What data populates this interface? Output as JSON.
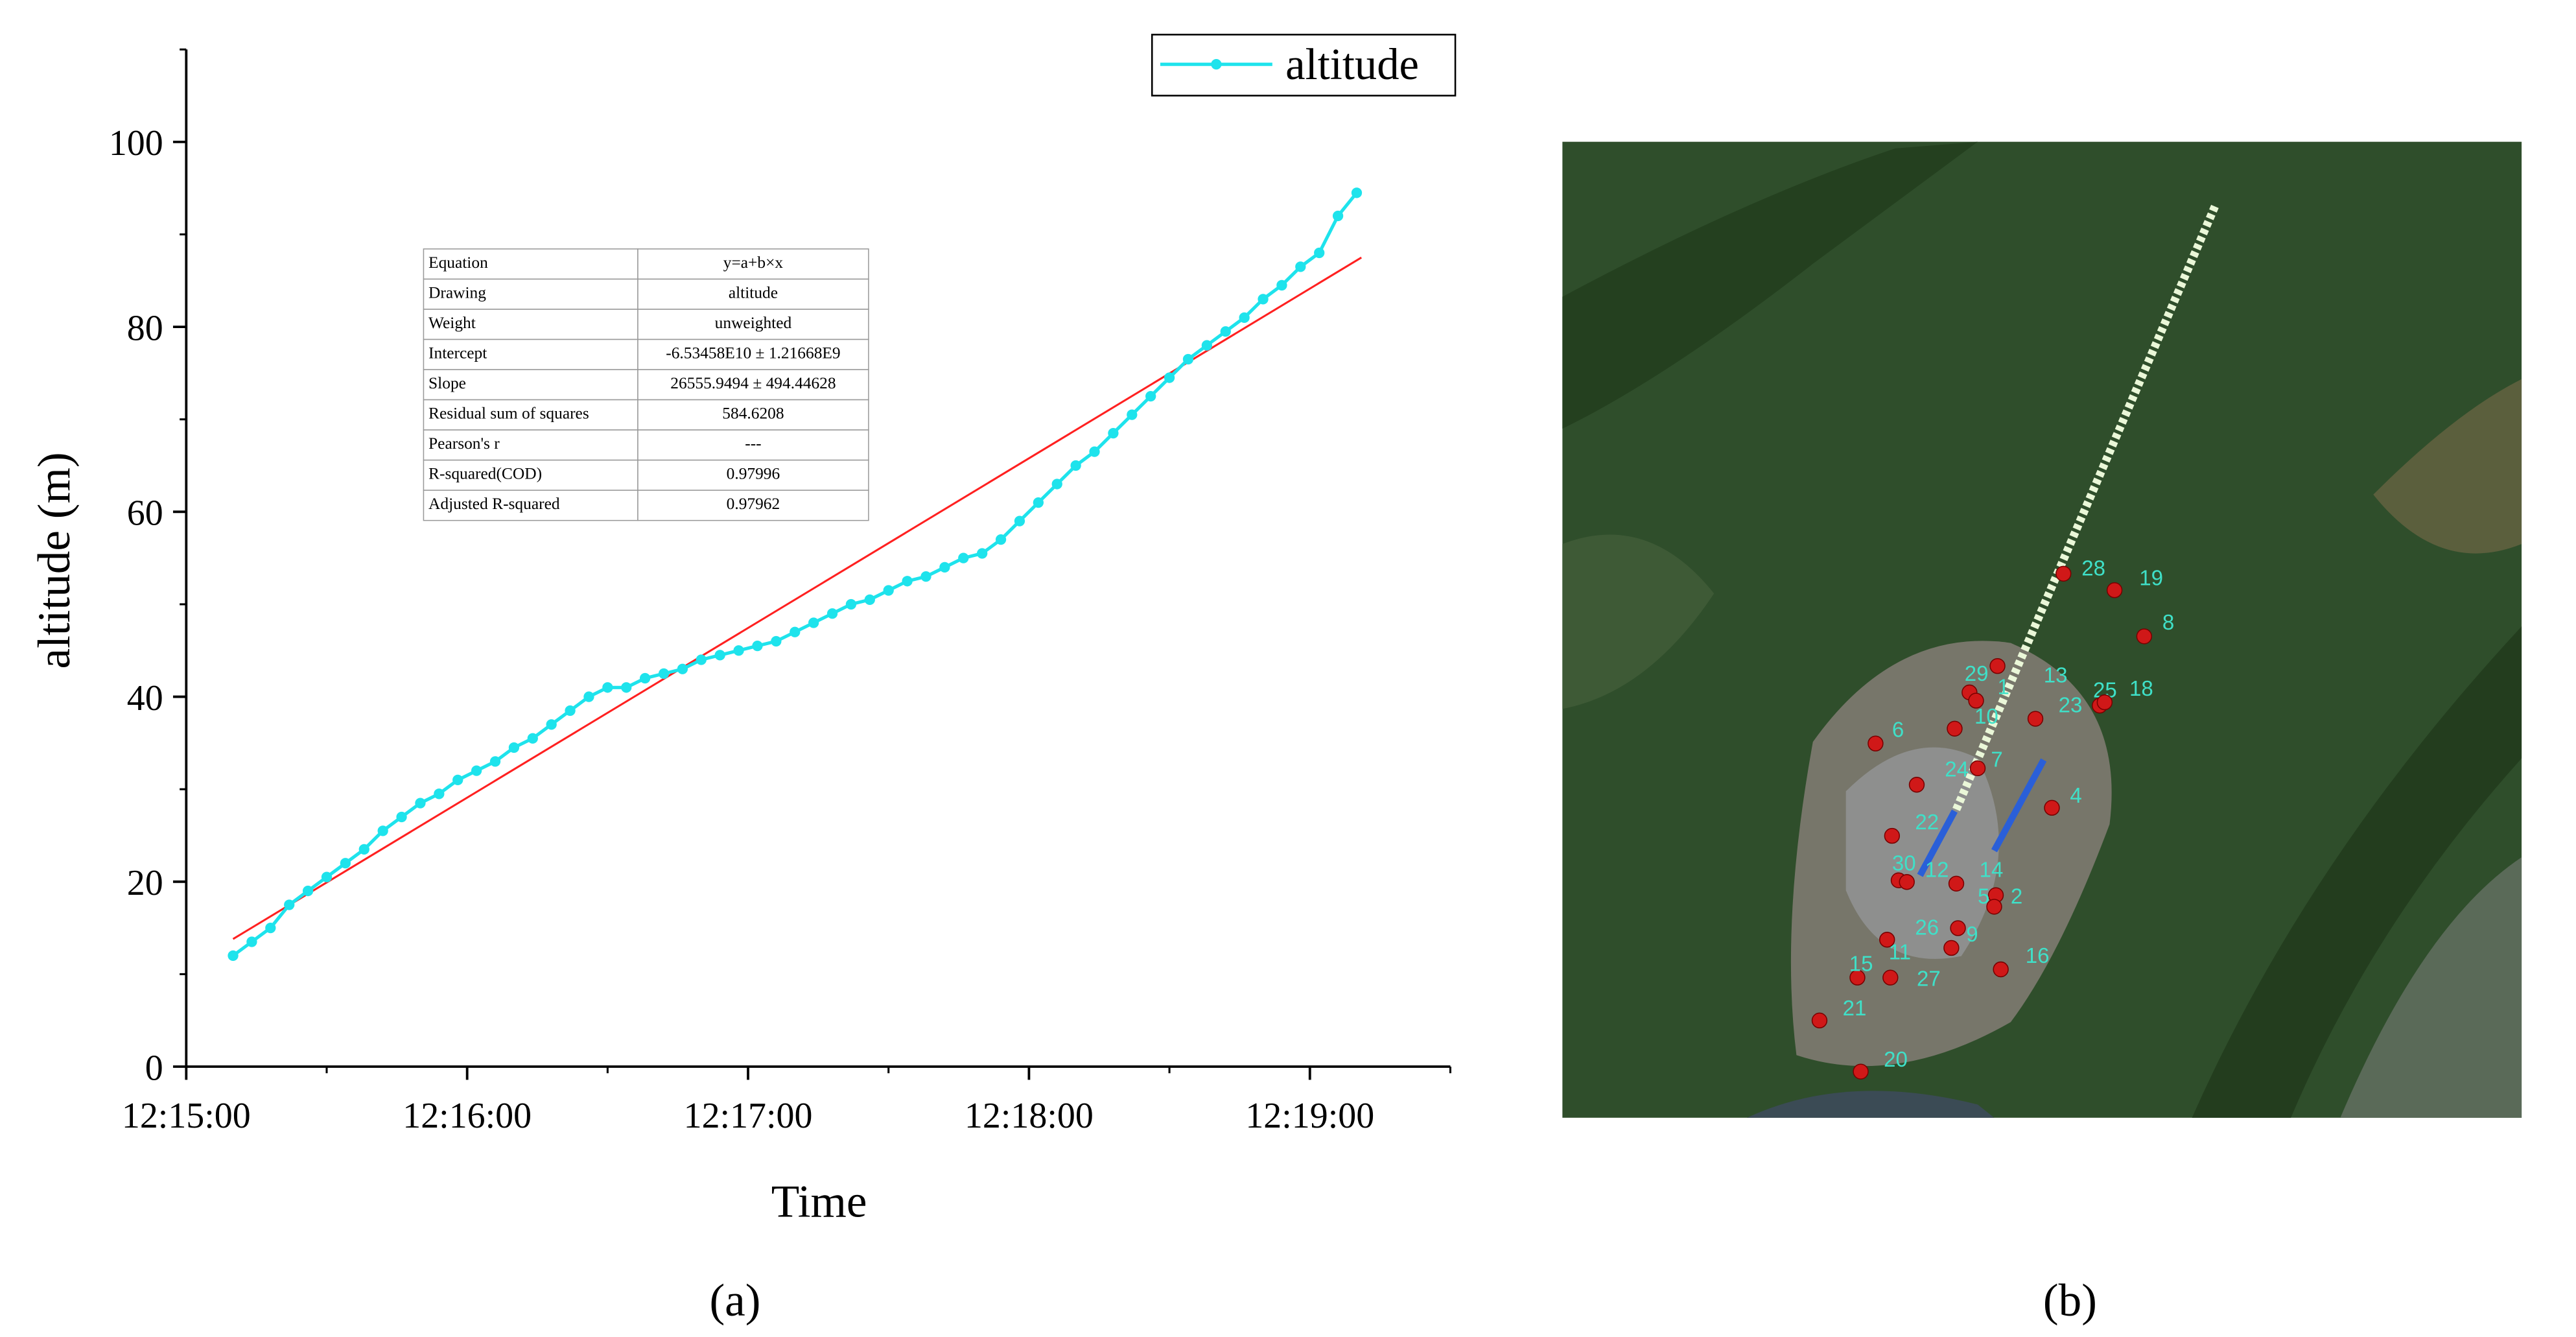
{
  "chart_data": {
    "type": "line",
    "xlabel": "Time",
    "ylabel": "altitude (m)",
    "xlim": [
      "12:15:00",
      "12:19:30"
    ],
    "xticks": [
      "12:15:00",
      "12:16:00",
      "12:17:00",
      "12:18:00",
      "12:19:00"
    ],
    "xminorticks": [
      "12:15:30",
      "12:16:30",
      "12:17:30",
      "12:18:30",
      "12:19:30"
    ],
    "ylim": [
      0,
      110
    ],
    "yticks": [
      0,
      20,
      40,
      60,
      80,
      100
    ],
    "yminorticks": [
      10,
      30,
      50,
      70,
      90,
      110
    ],
    "legend": "top-right",
    "series": [
      {
        "name": "altitude",
        "color": "#1ee3ec",
        "x": [
          "12:15:10",
          "12:15:14",
          "12:15:18",
          "12:15:22",
          "12:15:26",
          "12:15:30",
          "12:15:34",
          "12:15:38",
          "12:15:42",
          "12:15:46",
          "12:15:50",
          "12:15:54",
          "12:15:58",
          "12:16:02",
          "12:16:06",
          "12:16:10",
          "12:16:14",
          "12:16:18",
          "12:16:22",
          "12:16:26",
          "12:16:30",
          "12:16:34",
          "12:16:38",
          "12:16:42",
          "12:16:46",
          "12:16:50",
          "12:16:54",
          "12:16:58",
          "12:17:02",
          "12:17:06",
          "12:17:10",
          "12:17:14",
          "12:17:18",
          "12:17:22",
          "12:17:26",
          "12:17:30",
          "12:17:34",
          "12:17:38",
          "12:17:42",
          "12:17:46",
          "12:17:50",
          "12:17:54",
          "12:17:58",
          "12:18:02",
          "12:18:06",
          "12:18:10",
          "12:18:14",
          "12:18:18",
          "12:18:22",
          "12:18:26",
          "12:18:30",
          "12:18:34",
          "12:18:38",
          "12:18:42",
          "12:18:46",
          "12:18:50",
          "12:18:54",
          "12:18:58",
          "12:19:02",
          "12:19:06",
          "12:19:10"
        ],
        "values": [
          12,
          13.5,
          15,
          17.5,
          19,
          20.5,
          22,
          23.5,
          25.5,
          27,
          28.5,
          29.5,
          31,
          32,
          33,
          34.5,
          35.5,
          37,
          38.5,
          40,
          41,
          41,
          42,
          42.5,
          43,
          44,
          44.5,
          45,
          45.5,
          46,
          47,
          48,
          49,
          50,
          50.5,
          51.5,
          52.5,
          53,
          54,
          55,
          55.5,
          57,
          59,
          61,
          63,
          65,
          66.5,
          68.5,
          70.5,
          72.5,
          74.5,
          76.5,
          78,
          79.5,
          81,
          83,
          84.5,
          86.5,
          88,
          92,
          94.5
        ]
      }
    ],
    "fit_line": {
      "color": "#ff2020",
      "x": [
        "12:15:10",
        "12:19:11"
      ],
      "values": [
        13.8,
        87.5
      ]
    },
    "fit_table": [
      [
        "Equation",
        "y=a+b×x"
      ],
      [
        "Drawing",
        "altitude"
      ],
      [
        "Weight",
        "unweighted"
      ],
      [
        "Intercept",
        "-6.53458E10 ± 1.21668E9"
      ],
      [
        "Slope",
        "26555.9494 ± 494.44628"
      ],
      [
        "Residual sum of squares",
        "584.6208"
      ],
      [
        "Pearson's r",
        "---"
      ],
      [
        "R-squared(COD)",
        "0.97996"
      ],
      [
        "Adjusted R-squared",
        "0.97962"
      ]
    ]
  },
  "map": {
    "point_labels": [
      "19",
      "8",
      "28",
      "29",
      "1",
      "13",
      "10",
      "23",
      "25",
      "18",
      "6",
      "24",
      "7",
      "4",
      "22",
      "30",
      "12",
      "14",
      "2",
      "5",
      "26",
      "9",
      "11",
      "15",
      "27",
      "16",
      "21",
      "20"
    ]
  },
  "captions": [
    "(a)",
    "(b)"
  ]
}
